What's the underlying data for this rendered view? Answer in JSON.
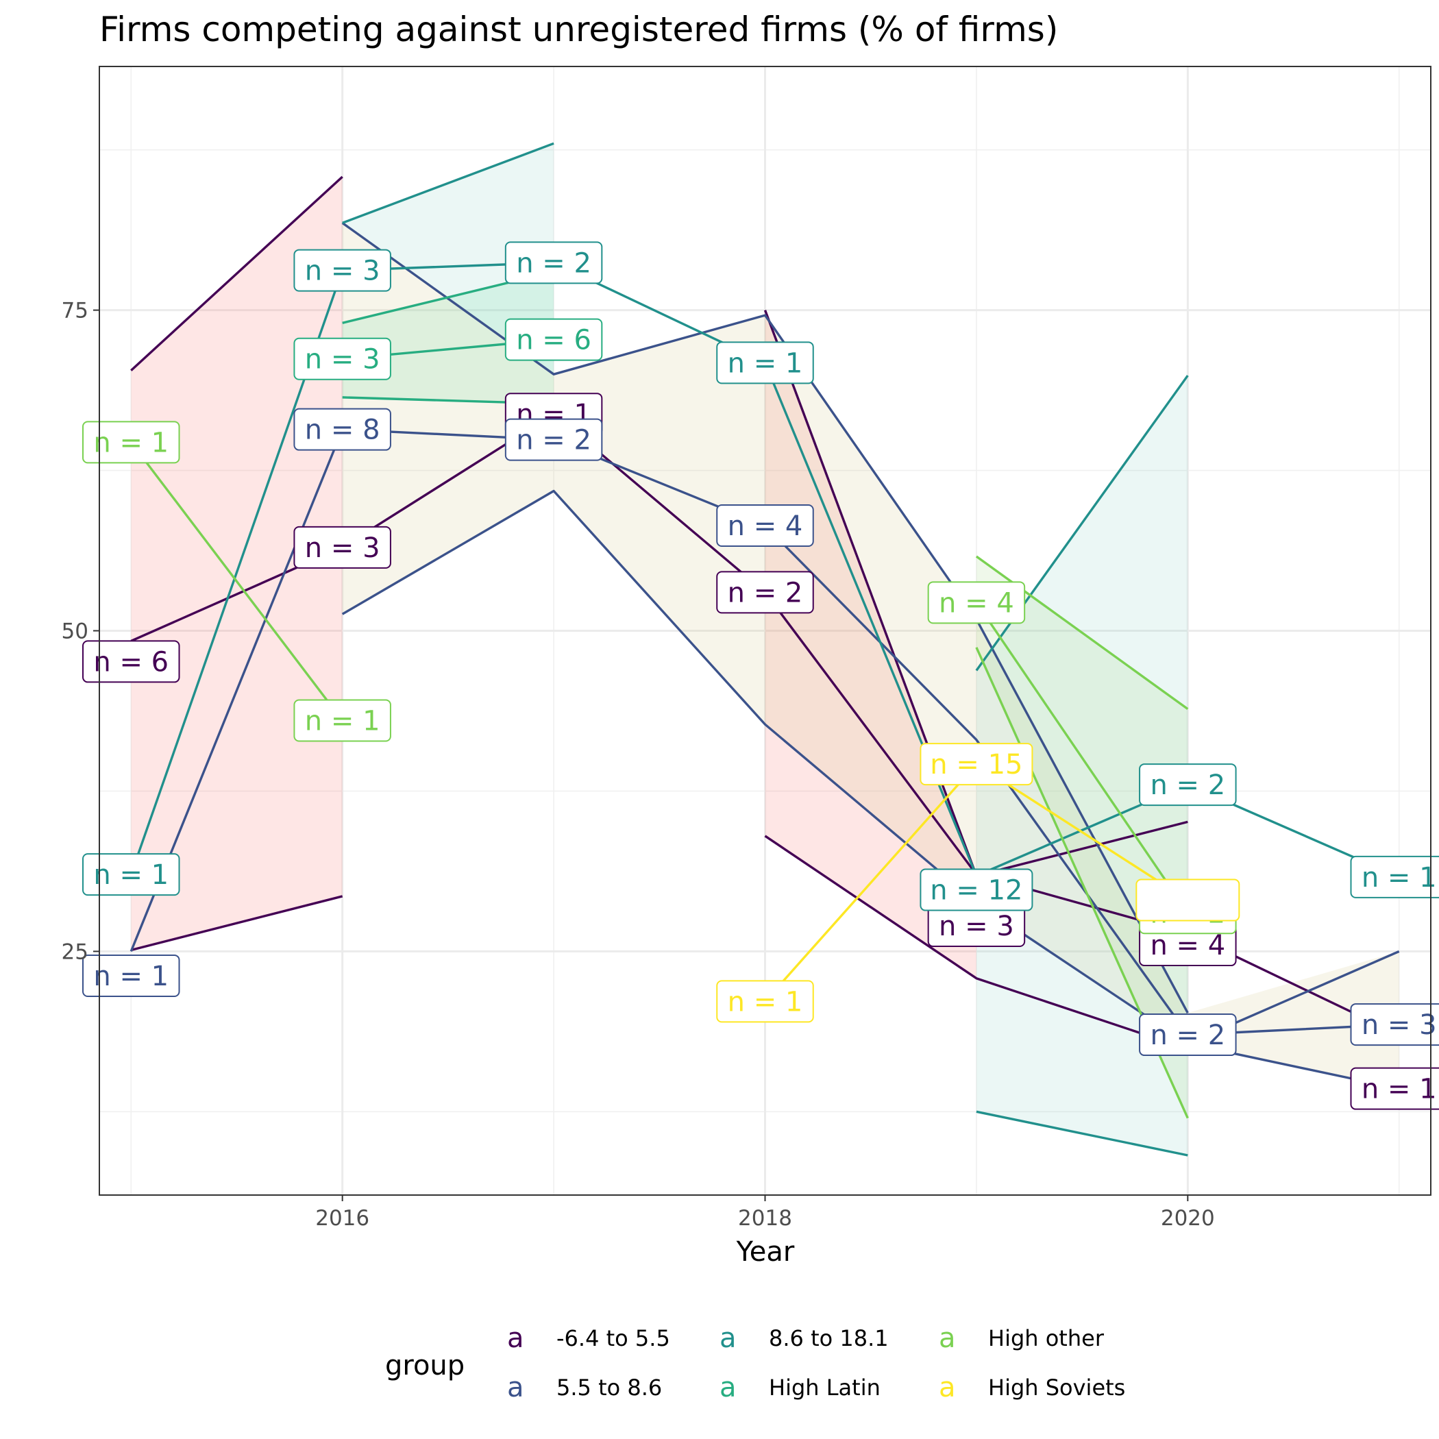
{
  "chart_data": {
    "type": "line",
    "title": "Firms competing against unregistered firms (% of firms)",
    "xlabel": "Year",
    "ylabel": "",
    "xlim": [
      2014.85,
      2021.15
    ],
    "ylim": [
      6.0,
      94.0
    ],
    "x_ticks": [
      2016,
      2018,
      2020
    ],
    "x_tick_labels": [
      "2016",
      "2018",
      "2020"
    ],
    "y_ticks": [
      25,
      50,
      75
    ],
    "y_tick_labels": [
      "25",
      "50",
      "75"
    ],
    "legend": {
      "title": "group",
      "position": "bottom",
      "key_glyph": "a",
      "entries": [
        "-6.4 to 5.5",
        "5.5 to 8.6",
        "8.6 to 18.1",
        "High Latin",
        "High other",
        "High Soviets"
      ]
    },
    "series": [
      {
        "name": "-6.4 to 5.5",
        "color": "#440154",
        "fill": "#F8766D",
        "lines": [
          {
            "x": [
              2015,
              2016
            ],
            "y": [
              70.3,
              85.4
            ]
          },
          {
            "x": [
              2015,
              2016
            ],
            "y": [
              25.1,
              29.3
            ]
          },
          {
            "x": [
              2015,
              2016,
              2017,
              2018,
              2019,
              2020,
              2021
            ],
            "y": [
              49.2,
              56.5,
              66.9,
              53.0,
              31.0,
              26.4,
              18.5
            ]
          },
          {
            "x": [
              2018,
              2019
            ],
            "y": [
              75.0,
              30.9
            ]
          },
          {
            "x": [
              2018,
              2019,
              2020
            ],
            "y": [
              34.0,
              22.9,
              17.4
            ]
          },
          {
            "x": [
              2019,
              2020
            ],
            "y": [
              30.9,
              35.1
            ]
          }
        ],
        "bands": [
          {
            "x": [
              2015,
              2016
            ],
            "lower": [
              25.1,
              29.3
            ],
            "upper": [
              70.3,
              85.4
            ]
          },
          {
            "x": [
              2018,
              2019
            ],
            "lower": [
              34.0,
              22.9
            ],
            "upper": [
              75.0,
              30.9
            ]
          }
        ],
        "labels": [
          {
            "x": 2015,
            "y": 47.6,
            "text": "n = 6"
          },
          {
            "x": 2016,
            "y": 56.5,
            "text": "n = 3"
          },
          {
            "x": 2017,
            "y": 66.9,
            "text": "n = 1"
          },
          {
            "x": 2018,
            "y": 53.0,
            "text": "n = 2"
          },
          {
            "x": 2019,
            "y": 27.0,
            "text": "n = 3"
          },
          {
            "x": 2020,
            "y": 25.5,
            "text": "n = 4"
          },
          {
            "x": 2021,
            "y": 14.3,
            "text": "n = 1"
          }
        ]
      },
      {
        "name": "5.5 to 8.6",
        "color": "#3B528B",
        "fill": "#D4C98A",
        "lines": [
          {
            "x": [
              2015,
              2016,
              2017,
              2018,
              2019,
              2020,
              2021
            ],
            "y": [
              25.0,
              65.7,
              64.9,
              58.2,
              41.5,
              18.5,
              19.3
            ]
          },
          {
            "x": [
              2016,
              2017,
              2018,
              2019,
              2020
            ],
            "y": [
              81.8,
              70.0,
              74.6,
              50.9,
              20.2
            ]
          },
          {
            "x": [
              2016,
              2017,
              2018,
              2019,
              2020,
              2021
            ],
            "y": [
              51.3,
              60.9,
              42.7,
              28.8,
              17.8,
              25.0
            ]
          },
          {
            "x": [
              2020,
              2021
            ],
            "y": [
              17.8,
              14.3
            ]
          }
        ],
        "bands": [
          {
            "x": [
              2016,
              2017,
              2018,
              2019,
              2020,
              2021
            ],
            "lower": [
              51.3,
              60.9,
              42.7,
              28.8,
              17.8,
              14.3
            ],
            "upper": [
              81.8,
              70.0,
              74.6,
              50.9,
              20.2,
              25.0
            ]
          }
        ],
        "labels": [
          {
            "x": 2015,
            "y": 23.1,
            "text": "n = 1"
          },
          {
            "x": 2016,
            "y": 65.7,
            "text": "n = 8"
          },
          {
            "x": 2017,
            "y": 64.9,
            "text": "n = 2"
          },
          {
            "x": 2018,
            "y": 58.2,
            "text": "n = 4"
          },
          {
            "x": 2020,
            "y": 18.5,
            "text": "n = 2"
          },
          {
            "x": 2021,
            "y": 19.3,
            "text": "n = 3"
          }
        ]
      },
      {
        "name": "8.6 to 18.1",
        "color": "#21908C",
        "fill": "#8FD1C9",
        "lines": [
          {
            "x": [
              2015,
              2016,
              2017,
              2018,
              2019,
              2020,
              2021
            ],
            "y": [
              31.0,
              78.1,
              78.7,
              70.9,
              30.9,
              38.0,
              30.8
            ]
          },
          {
            "x": [
              2016,
              2017
            ],
            "y": [
              81.8,
              88.0
            ]
          },
          {
            "x": [
              2019,
              2020
            ],
            "y": [
              46.9,
              69.9
            ]
          },
          {
            "x": [
              2019,
              2020
            ],
            "y": [
              12.5,
              9.1
            ]
          }
        ],
        "bands": [
          {
            "x": [
              2016,
              2017
            ],
            "lower": [
              81.8,
              70.0
            ],
            "upper": [
              81.8,
              88.0
            ]
          },
          {
            "x": [
              2019,
              2020
            ],
            "lower": [
              12.5,
              9.1
            ],
            "upper": [
              46.9,
              69.9
            ]
          }
        ],
        "labels": [
          {
            "x": 2015,
            "y": 31.0,
            "text": "n = 1"
          },
          {
            "x": 2016,
            "y": 78.1,
            "text": "n = 3"
          },
          {
            "x": 2017,
            "y": 78.7,
            "text": "n = 2"
          },
          {
            "x": 2018,
            "y": 70.9,
            "text": "n = 1"
          },
          {
            "x": 2019,
            "y": 29.8,
            "text": "n = 12"
          },
          {
            "x": 2020,
            "y": 38.0,
            "text": "n = 2"
          },
          {
            "x": 2021,
            "y": 30.8,
            "text": "n = 1"
          }
        ]
      },
      {
        "name": "High Latin",
        "color": "#27AD81",
        "fill": "#6FDDA8",
        "lines": [
          {
            "x": [
              2016,
              2017
            ],
            "y": [
              71.2,
              72.7
            ]
          },
          {
            "x": [
              2016,
              2017
            ],
            "y": [
              74.0,
              78.0
            ]
          },
          {
            "x": [
              2016,
              2017
            ],
            "y": [
              68.2,
              67.7
            ]
          }
        ],
        "bands": [
          {
            "x": [
              2016,
              2017
            ],
            "lower": [
              68.2,
              67.7
            ],
            "upper": [
              74.0,
              78.0
            ]
          }
        ],
        "labels": [
          {
            "x": 2016,
            "y": 71.2,
            "text": "n = 3"
          },
          {
            "x": 2017,
            "y": 72.7,
            "text": "n = 6"
          }
        ]
      },
      {
        "name": "High other",
        "color": "#7AD151",
        "fill": "#A8D88C",
        "lines": [
          {
            "x": [
              2015,
              2016
            ],
            "y": [
              64.7,
              43.0
            ]
          },
          {
            "x": [
              2019,
              2020
            ],
            "y": [
              52.2,
              28.0
            ]
          },
          {
            "x": [
              2019,
              2020
            ],
            "y": [
              55.8,
              43.9
            ]
          },
          {
            "x": [
              2019,
              2020
            ],
            "y": [
              48.7,
              12.0
            ]
          }
        ],
        "bands": [
          {
            "x": [
              2019,
              2020
            ],
            "lower": [
              48.7,
              12.0
            ],
            "upper": [
              55.8,
              43.9
            ]
          }
        ],
        "labels": [
          {
            "x": 2015,
            "y": 64.7,
            "text": "n = 1"
          },
          {
            "x": 2016,
            "y": 43.0,
            "text": "n = 1"
          },
          {
            "x": 2019,
            "y": 52.2,
            "text": "n = 4"
          },
          {
            "x": 2020,
            "y": 28.0,
            "text": "n = 2"
          }
        ]
      },
      {
        "name": "High Soviets",
        "color": "#FDE725",
        "fill": "#FDE725",
        "lines": [
          {
            "x": [
              2018,
              2019,
              2020
            ],
            "y": [
              21.1,
              39.6,
              29.0
            ]
          }
        ],
        "bands": [],
        "labels": [
          {
            "x": 2018,
            "y": 21.1,
            "text": "n = 1"
          },
          {
            "x": 2019,
            "y": 39.6,
            "text": "n = 15"
          },
          {
            "x": 2020,
            "y": 29.0,
            "text": ""
          }
        ]
      }
    ]
  }
}
